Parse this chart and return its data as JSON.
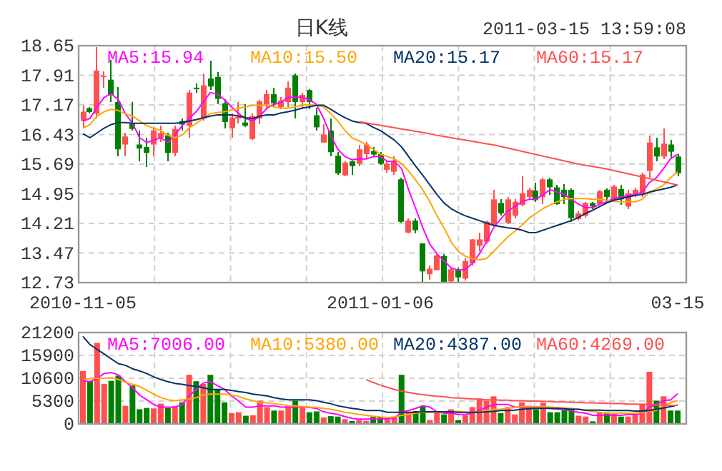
{
  "chart_data": [
    {
      "type": "candlestick",
      "title": "日K线",
      "annotations": [
        "2011-03-15 13:59:08"
      ],
      "categories": [
        "2010-11-05",
        null,
        null,
        null,
        null,
        null,
        null,
        null,
        null,
        null,
        null,
        null,
        null,
        null,
        null,
        null,
        null,
        null,
        null,
        null,
        null,
        null,
        null,
        null,
        null,
        null,
        null,
        null,
        null,
        null,
        null,
        null,
        null,
        null,
        null,
        null,
        null,
        null,
        null,
        null,
        null,
        null,
        "2011-01-06",
        null,
        null,
        null,
        null,
        null,
        null,
        null,
        null,
        null,
        null,
        null,
        null,
        null,
        null,
        null,
        null,
        null,
        null,
        null,
        null,
        null,
        null,
        null,
        null,
        null,
        null,
        null,
        null,
        null,
        null,
        null,
        null,
        null,
        null,
        null,
        null,
        null,
        null,
        null,
        null,
        null,
        "03-15"
      ],
      "ohlc": [
        [
          16.77,
          17.16,
          16.59,
          17.0
        ],
        [
          17.09,
          17.12,
          16.96,
          16.99
        ],
        [
          16.95,
          18.62,
          16.83,
          18.03
        ],
        [
          17.88,
          18.0,
          17.6,
          17.9
        ],
        [
          17.8,
          18.3,
          17.24,
          17.42
        ],
        [
          17.24,
          17.62,
          15.88,
          16.06
        ],
        [
          16.18,
          16.47,
          15.88,
          16.38
        ],
        [
          16.7,
          17.24,
          16.52,
          16.57
        ],
        [
          16.18,
          16.53,
          15.76,
          16.08
        ],
        [
          16.12,
          16.35,
          15.62,
          15.97
        ],
        [
          16.18,
          16.59,
          15.88,
          16.53
        ],
        [
          16.35,
          16.65,
          16.24,
          16.47
        ],
        [
          16.41,
          16.47,
          15.76,
          15.97
        ],
        [
          15.97,
          16.65,
          15.88,
          16.57
        ],
        [
          16.77,
          16.83,
          16.53,
          16.68
        ],
        [
          16.65,
          17.54,
          16.35,
          17.48
        ],
        [
          17.6,
          17.71,
          17.48,
          17.59
        ],
        [
          16.83,
          17.95,
          16.77,
          17.66
        ],
        [
          17.83,
          18.27,
          17.54,
          17.63
        ],
        [
          17.87,
          17.99,
          17.18,
          17.32
        ],
        [
          17.21,
          17.32,
          16.59,
          16.74
        ],
        [
          16.59,
          16.95,
          16.35,
          16.85
        ],
        [
          16.83,
          17.24,
          16.71,
          16.87
        ],
        [
          16.73,
          17.18,
          16.61,
          16.65
        ],
        [
          16.32,
          16.95,
          16.29,
          16.89
        ],
        [
          16.83,
          17.3,
          16.68,
          17.26
        ],
        [
          17.18,
          17.54,
          17.06,
          17.44
        ],
        [
          17.44,
          17.6,
          17.12,
          17.21
        ],
        [
          17.12,
          17.36,
          17.06,
          17.28
        ],
        [
          17.24,
          17.75,
          17.12,
          17.6
        ],
        [
          17.91,
          17.95,
          16.83,
          17.24
        ],
        [
          17.24,
          17.48,
          17.06,
          17.42
        ],
        [
          17.54,
          17.57,
          17.06,
          17.24
        ],
        [
          16.91,
          17.09,
          16.53,
          16.61
        ],
        [
          16.23,
          16.68,
          16.23,
          16.43
        ],
        [
          16.53,
          16.83,
          15.88,
          15.99
        ],
        [
          15.9,
          15.99,
          15.43,
          15.46
        ],
        [
          15.41,
          15.76,
          15.38,
          15.73
        ],
        [
          15.76,
          15.78,
          15.43,
          15.64
        ],
        [
          15.7,
          16.18,
          15.64,
          16.06
        ],
        [
          15.94,
          16.24,
          15.82,
          16.18
        ],
        [
          16.02,
          16.11,
          15.88,
          15.93
        ],
        [
          15.94,
          16.0,
          15.67,
          15.7
        ],
        [
          15.55,
          15.78,
          15.47,
          15.7
        ],
        [
          15.5,
          15.88,
          15.43,
          15.78
        ],
        [
          15.31,
          15.35,
          14.22,
          14.25
        ],
        [
          13.98,
          14.34,
          13.96,
          14.28
        ],
        [
          14.28,
          14.34,
          13.96,
          14.04
        ],
        [
          13.71,
          13.71,
          12.75,
          13.01
        ],
        [
          12.94,
          13.15,
          12.8,
          13.08
        ],
        [
          13.04,
          13.47,
          13.04,
          13.41
        ],
        [
          13.39,
          13.45,
          12.73,
          12.74
        ],
        [
          12.76,
          13.1,
          12.73,
          13.06
        ],
        [
          13.06,
          13.1,
          12.74,
          12.86
        ],
        [
          12.83,
          13.33,
          12.78,
          13.27
        ],
        [
          13.21,
          13.81,
          13.15,
          13.81
        ],
        [
          13.65,
          13.98,
          13.51,
          13.81
        ],
        [
          13.75,
          14.28,
          13.69,
          14.25
        ],
        [
          14.16,
          15.05,
          14.13,
          14.81
        ],
        [
          14.72,
          14.81,
          14.4,
          14.46
        ],
        [
          14.22,
          14.87,
          14.2,
          14.81
        ],
        [
          14.4,
          14.81,
          14.34,
          14.75
        ],
        [
          14.67,
          15.38,
          14.63,
          14.96
        ],
        [
          14.87,
          15.11,
          14.81,
          15.05
        ],
        [
          15.03,
          15.23,
          14.75,
          14.79
        ],
        [
          14.87,
          15.35,
          14.69,
          15.31
        ],
        [
          15.31,
          15.35,
          14.93,
          15.11
        ],
        [
          15.11,
          15.17,
          14.67,
          14.69
        ],
        [
          15.05,
          15.19,
          14.69,
          14.87
        ],
        [
          15.05,
          15.08,
          14.25,
          14.34
        ],
        [
          14.32,
          14.52,
          14.28,
          14.46
        ],
        [
          14.4,
          14.75,
          14.36,
          14.72
        ],
        [
          14.72,
          14.75,
          14.57,
          14.63
        ],
        [
          14.69,
          15.05,
          14.67,
          15.01
        ],
        [
          15.05,
          15.08,
          14.75,
          14.87
        ],
        [
          14.81,
          15.17,
          14.75,
          15.13
        ],
        [
          15.07,
          15.17,
          14.67,
          14.81
        ],
        [
          14.63,
          15.05,
          14.57,
          14.96
        ],
        [
          14.93,
          15.11,
          14.87,
          15.05
        ],
        [
          14.93,
          15.47,
          14.87,
          15.43
        ],
        [
          15.52,
          16.41,
          15.35,
          16.23
        ],
        [
          16.11,
          16.35,
          15.76,
          15.88
        ],
        [
          15.88,
          16.59,
          15.82,
          16.2
        ],
        [
          16.18,
          16.29,
          15.85,
          16.0
        ],
        [
          15.88,
          15.94,
          15.38,
          15.46
        ]
      ],
      "colors": [
        "#ff5050",
        "#008000",
        "#ff5050",
        "#ff5050",
        "#008000",
        "#008000",
        "#ff5050",
        "#008000",
        "#008000",
        "#008000",
        "#ff5050",
        "#ff5050",
        "#008000",
        "#ff5050",
        "#008000",
        "#ff5050",
        "#008000",
        "#ff5050",
        "#008000",
        "#008000",
        "#008000",
        "#ff5050",
        "#ff5050",
        "#008000",
        "#ff5050",
        "#ff5050",
        "#ff5050",
        "#008000",
        "#ff5050",
        "#ff5050",
        "#008000",
        "#ff5050",
        "#008000",
        "#008000",
        "#ff5050",
        "#008000",
        "#008000",
        "#ff5050",
        "#008000",
        "#ff5050",
        "#ff5050",
        "#008000",
        "#008000",
        "#ff5050",
        "#ff5050",
        "#008000",
        "#ff5050",
        "#008000",
        "#008000",
        "#ff5050",
        "#ff5050",
        "#008000",
        "#ff5050",
        "#008000",
        "#ff5050",
        "#ff5050",
        "#ff5050",
        "#ff5050",
        "#ff5050",
        "#008000",
        "#ff5050",
        "#ff5050",
        "#ff5050",
        "#ff5050",
        "#008000",
        "#ff5050",
        "#008000",
        "#008000",
        "#008000",
        "#008000",
        "#ff5050",
        "#ff5050",
        "#008000",
        "#ff5050",
        "#008000",
        "#ff5050",
        "#008000",
        "#ff5050",
        "#ff5050",
        "#ff5050",
        "#ff5050",
        "#008000",
        "#ff5050",
        "#008000",
        "#008000"
      ],
      "series": [
        {
          "type": "line",
          "name": "MA5:15.94",
          "color": "#ff00ff",
          "values": [
            16.77,
            16.83,
            17.12,
            17.36,
            17.45,
            17.3,
            16.95,
            16.71,
            16.35,
            16.23,
            16.29,
            16.35,
            16.23,
            16.41,
            16.65,
            16.83,
            17.0,
            17.24,
            17.48,
            17.44,
            17.3,
            17.12,
            16.95,
            16.83,
            16.77,
            16.89,
            17.09,
            17.18,
            17.24,
            17.36,
            17.36,
            17.36,
            17.3,
            17.18,
            16.83,
            16.41,
            16.06,
            15.88,
            15.8,
            15.82,
            15.82,
            15.88,
            15.88,
            15.76,
            15.76,
            15.58,
            15.05,
            14.58,
            14.1,
            13.69,
            13.45,
            13.27,
            13.1,
            13.04,
            13.06,
            13.21,
            13.45,
            13.75,
            14.1,
            14.32,
            14.52,
            14.63,
            14.75,
            14.81,
            14.81,
            14.93,
            15.05,
            14.99,
            14.93,
            14.81,
            14.69,
            14.6,
            14.6,
            14.69,
            14.75,
            14.83,
            14.87,
            14.91,
            14.93,
            14.99,
            15.23,
            15.35,
            15.58,
            15.82,
            15.94
          ]
        },
        {
          "type": "line",
          "name": "MA10:15.50",
          "color": "#ffa500",
          "values": [
            16.59,
            16.68,
            16.89,
            17.0,
            17.06,
            17.03,
            16.95,
            16.89,
            16.77,
            16.65,
            16.59,
            16.53,
            16.41,
            16.35,
            16.41,
            16.59,
            16.71,
            16.83,
            16.95,
            16.98,
            17.0,
            17.04,
            17.09,
            17.12,
            17.16,
            17.16,
            17.16,
            17.12,
            17.09,
            17.09,
            17.12,
            17.16,
            17.18,
            17.16,
            17.12,
            16.95,
            16.77,
            16.53,
            16.35,
            16.27,
            16.18,
            16.06,
            15.94,
            15.88,
            15.82,
            15.7,
            15.52,
            15.29,
            15.05,
            14.75,
            14.4,
            14.1,
            13.75,
            13.51,
            13.39,
            13.33,
            13.3,
            13.33,
            13.51,
            13.69,
            13.87,
            14.01,
            14.16,
            14.34,
            14.46,
            14.58,
            14.67,
            14.75,
            14.81,
            14.83,
            14.83,
            14.83,
            14.81,
            14.81,
            14.79,
            14.76,
            14.75,
            14.75,
            14.75,
            14.81,
            14.99,
            15.07,
            15.17,
            15.35,
            15.5
          ]
        },
        {
          "type": "line",
          "name": "MA20:15.17",
          "color": "#003366",
          "values": [
            16.45,
            16.35,
            16.47,
            16.59,
            16.68,
            16.73,
            16.73,
            16.71,
            16.71,
            16.71,
            16.71,
            16.71,
            16.71,
            16.71,
            16.73,
            16.77,
            16.8,
            16.85,
            16.89,
            16.92,
            16.92,
            16.92,
            16.89,
            16.85,
            16.83,
            16.89,
            16.92,
            16.92,
            16.97,
            17.0,
            17.04,
            17.09,
            17.12,
            17.16,
            17.16,
            17.06,
            16.95,
            16.85,
            16.77,
            16.73,
            16.71,
            16.61,
            16.53,
            16.41,
            16.29,
            16.12,
            15.88,
            15.64,
            15.41,
            15.17,
            14.93,
            14.72,
            14.58,
            14.48,
            14.4,
            14.34,
            14.28,
            14.22,
            14.16,
            14.13,
            14.1,
            14.08,
            14.04,
            13.98,
            13.98,
            14.04,
            14.1,
            14.16,
            14.22,
            14.28,
            14.36,
            14.46,
            14.54,
            14.63,
            14.72,
            14.79,
            14.83,
            14.87,
            14.91,
            14.93,
            14.99,
            15.03,
            15.07,
            15.11,
            15.17
          ]
        },
        {
          "type": "line",
          "name": "MA60:15.17",
          "color": "#ff5050",
          "values": [
            null,
            null,
            null,
            null,
            null,
            null,
            null,
            null,
            null,
            null,
            null,
            null,
            null,
            null,
            null,
            null,
            null,
            null,
            null,
            null,
            null,
            null,
            null,
            null,
            null,
            null,
            null,
            null,
            null,
            null,
            null,
            null,
            null,
            null,
            null,
            null,
            null,
            null,
            null,
            16.75,
            16.72,
            16.69,
            16.66,
            16.63,
            16.6,
            16.57,
            16.54,
            16.51,
            16.48,
            16.45,
            16.41,
            16.38,
            16.35,
            16.32,
            16.29,
            16.26,
            16.23,
            16.2,
            16.17,
            16.13,
            16.09,
            16.05,
            16.01,
            15.97,
            15.93,
            15.89,
            15.85,
            15.81,
            15.77,
            15.73,
            15.69,
            15.66,
            15.63,
            15.6,
            15.57,
            15.53,
            15.49,
            15.45,
            15.41,
            15.37,
            15.33,
            15.29,
            15.25,
            15.21,
            15.17
          ]
        }
      ],
      "ylim": [
        12.73,
        18.65
      ],
      "yticks": [
        12.73,
        13.47,
        14.21,
        14.95,
        15.69,
        16.43,
        17.17,
        17.91,
        18.65
      ],
      "grid": true,
      "legend": "top"
    },
    {
      "type": "bar",
      "tick_labels": "y",
      "categories": [
        null,
        null,
        null,
        null,
        null,
        null,
        null,
        null,
        null,
        null,
        null,
        null,
        null,
        null,
        null,
        null,
        null,
        null,
        null,
        null,
        null,
        null,
        null,
        null,
        null,
        null,
        null,
        null,
        null,
        null,
        null,
        null,
        null,
        null,
        null,
        null,
        null,
        null,
        null,
        null,
        null,
        null,
        null,
        null,
        null,
        null,
        null,
        null,
        null,
        null,
        null,
        null,
        null,
        null,
        null,
        null,
        null,
        null,
        null,
        null,
        null,
        null,
        null,
        null,
        null,
        null,
        null,
        null,
        null,
        null,
        null,
        null,
        null,
        null,
        null,
        null,
        null,
        null,
        null,
        null,
        null,
        null,
        null,
        null,
        null
      ],
      "series": [
        {
          "type": "bar",
          "values": [
            12300,
            10000,
            18800,
            9300,
            10000,
            11200,
            4200,
            8900,
            3400,
            3700,
            3600,
            4700,
            3700,
            4100,
            5000,
            11400,
            9900,
            9300,
            11400,
            8000,
            5000,
            2500,
            2700,
            1900,
            2000,
            5400,
            3900,
            3100,
            3100,
            4100,
            5400,
            3900,
            2700,
            2900,
            1500,
            1800,
            1700,
            1100,
            700,
            900,
            700,
            1600,
            1600,
            1100,
            1600,
            11400,
            2700,
            3000,
            4200,
            900,
            2700,
            2200,
            3400,
            900,
            2000,
            3900,
            5900,
            5400,
            6400,
            2500,
            3900,
            2200,
            5000,
            4200,
            3400,
            4900,
            2700,
            2700,
            3200,
            3400,
            1900,
            1700,
            600,
            2700,
            2700,
            2500,
            1700,
            1700,
            2200,
            4700,
            12100,
            5400,
            6400,
            3100,
            3100
          ],
          "colors": [
            "#ff5050",
            "#008000",
            "#ff5050",
            "#ff5050",
            "#008000",
            "#008000",
            "#ff5050",
            "#008000",
            "#008000",
            "#008000",
            "#ff5050",
            "#ff5050",
            "#008000",
            "#ff5050",
            "#008000",
            "#ff5050",
            "#008000",
            "#ff5050",
            "#008000",
            "#008000",
            "#008000",
            "#ff5050",
            "#ff5050",
            "#008000",
            "#ff5050",
            "#ff5050",
            "#ff5050",
            "#008000",
            "#ff5050",
            "#ff5050",
            "#008000",
            "#ff5050",
            "#008000",
            "#008000",
            "#ff5050",
            "#008000",
            "#008000",
            "#ff5050",
            "#008000",
            "#ff5050",
            "#ff5050",
            "#008000",
            "#008000",
            "#ff5050",
            "#ff5050",
            "#008000",
            "#ff5050",
            "#008000",
            "#008000",
            "#ff5050",
            "#ff5050",
            "#008000",
            "#ff5050",
            "#008000",
            "#ff5050",
            "#ff5050",
            "#ff5050",
            "#ff5050",
            "#ff5050",
            "#008000",
            "#ff5050",
            "#ff5050",
            "#ff5050",
            "#ff5050",
            "#008000",
            "#ff5050",
            "#008000",
            "#008000",
            "#008000",
            "#008000",
            "#ff5050",
            "#ff5050",
            "#008000",
            "#ff5050",
            "#008000",
            "#ff5050",
            "#008000",
            "#ff5050",
            "#ff5050",
            "#ff5050",
            "#ff5050",
            "#008000",
            "#ff5050",
            "#008000",
            "#008000"
          ]
        },
        {
          "type": "line",
          "name": "MA5:7006.00",
          "color": "#ff00ff",
          "values": [
            10000,
            9800,
            10600,
            11700,
            11900,
            11400,
            9800,
            8400,
            6700,
            5600,
            4500,
            3900,
            3900,
            3900,
            4500,
            6500,
            8000,
            9500,
            9800,
            8900,
            8000,
            6500,
            5300,
            3900,
            3900,
            4200,
            4200,
            4200,
            3900,
            3900,
            3900,
            4000,
            3800,
            3600,
            2800,
            2500,
            2200,
            1700,
            1300,
            1100,
            1100,
            1100,
            1100,
            1200,
            1300,
            2800,
            3100,
            3600,
            4200,
            3900,
            2800,
            2500,
            2500,
            2200,
            2200,
            2500,
            3100,
            3900,
            4500,
            4500,
            4500,
            3900,
            3900,
            3700,
            3900,
            3800,
            3600,
            3400,
            3400,
            3000,
            2700,
            2500,
            2000,
            2000,
            2000,
            2000,
            2000,
            2200,
            2200,
            2500,
            3900,
            4500,
            5400,
            5600,
            7000
          ]
        },
        {
          "type": "line",
          "name": "MA10:5380.00",
          "color": "#ffa500",
          "values": [
            10300,
            10500,
            10600,
            10600,
            10700,
            10300,
            9700,
            9200,
            8700,
            7800,
            6900,
            6100,
            5600,
            5400,
            5600,
            5800,
            6100,
            6700,
            6900,
            6900,
            6900,
            6700,
            6400,
            5800,
            5400,
            5000,
            4900,
            4700,
            4500,
            4200,
            4200,
            4000,
            3900,
            3800,
            3600,
            3400,
            3100,
            2700,
            2500,
            2200,
            2000,
            1800,
            1600,
            1500,
            1600,
            2000,
            2200,
            2500,
            2700,
            2700,
            2700,
            2700,
            2900,
            2900,
            2700,
            2700,
            2800,
            3100,
            3400,
            3400,
            3600,
            3800,
            4000,
            4000,
            4000,
            4000,
            3900,
            3800,
            3700,
            3600,
            3400,
            3100,
            2900,
            2700,
            2500,
            2500,
            2500,
            2500,
            2500,
            2600,
            2900,
            3100,
            4400,
            4900,
            5400
          ]
        },
        {
          "type": "line",
          "name": "MA20:4387.00",
          "color": "#003366",
          "values": [
            20300,
            18400,
            17300,
            16200,
            15100,
            14000,
            13600,
            12800,
            12300,
            11700,
            10900,
            10300,
            9800,
            9400,
            9200,
            8900,
            8700,
            8400,
            8000,
            8000,
            8000,
            7800,
            7500,
            7300,
            6900,
            6700,
            6500,
            6100,
            5800,
            5600,
            5600,
            5600,
            5600,
            5400,
            5000,
            4700,
            4200,
            3900,
            3600,
            3400,
            3100,
            3100,
            3100,
            2700,
            2700,
            2700,
            2700,
            2700,
            2800,
            2800,
            2800,
            2800,
            2800,
            2700,
            2700,
            2700,
            2700,
            2800,
            2900,
            3100,
            3100,
            3200,
            3400,
            3500,
            3600,
            3600,
            3600,
            3600,
            3500,
            3400,
            3400,
            3200,
            3200,
            3200,
            3100,
            3100,
            3100,
            3100,
            3000,
            3000,
            3100,
            3400,
            3700,
            4000,
            4400
          ]
        },
        {
          "type": "line",
          "name": "MA60:4269.00",
          "color": "#ff5050",
          "values": [
            null,
            null,
            null,
            null,
            null,
            null,
            null,
            null,
            null,
            null,
            null,
            null,
            null,
            null,
            null,
            null,
            null,
            null,
            null,
            null,
            null,
            null,
            null,
            null,
            null,
            null,
            null,
            null,
            null,
            null,
            null,
            null,
            null,
            null,
            null,
            null,
            null,
            null,
            null,
            null,
            10300,
            9600,
            9000,
            8500,
            8000,
            7600,
            7300,
            7000,
            6800,
            6600,
            6400,
            6300,
            6100,
            6000,
            5900,
            5800,
            5700,
            5600,
            5600,
            5500,
            5500,
            5400,
            5400,
            5300,
            5300,
            5200,
            5200,
            5100,
            5100,
            5000,
            5000,
            4900,
            4900,
            4800,
            4800,
            4700,
            4700,
            4600,
            4600,
            4500,
            4500,
            4400,
            4400,
            4300,
            4300
          ]
        }
      ],
      "ylim": [
        0,
        21200
      ],
      "yticks": [
        0,
        5300,
        10600,
        15900,
        21200
      ],
      "grid": true,
      "legend": "top"
    }
  ]
}
